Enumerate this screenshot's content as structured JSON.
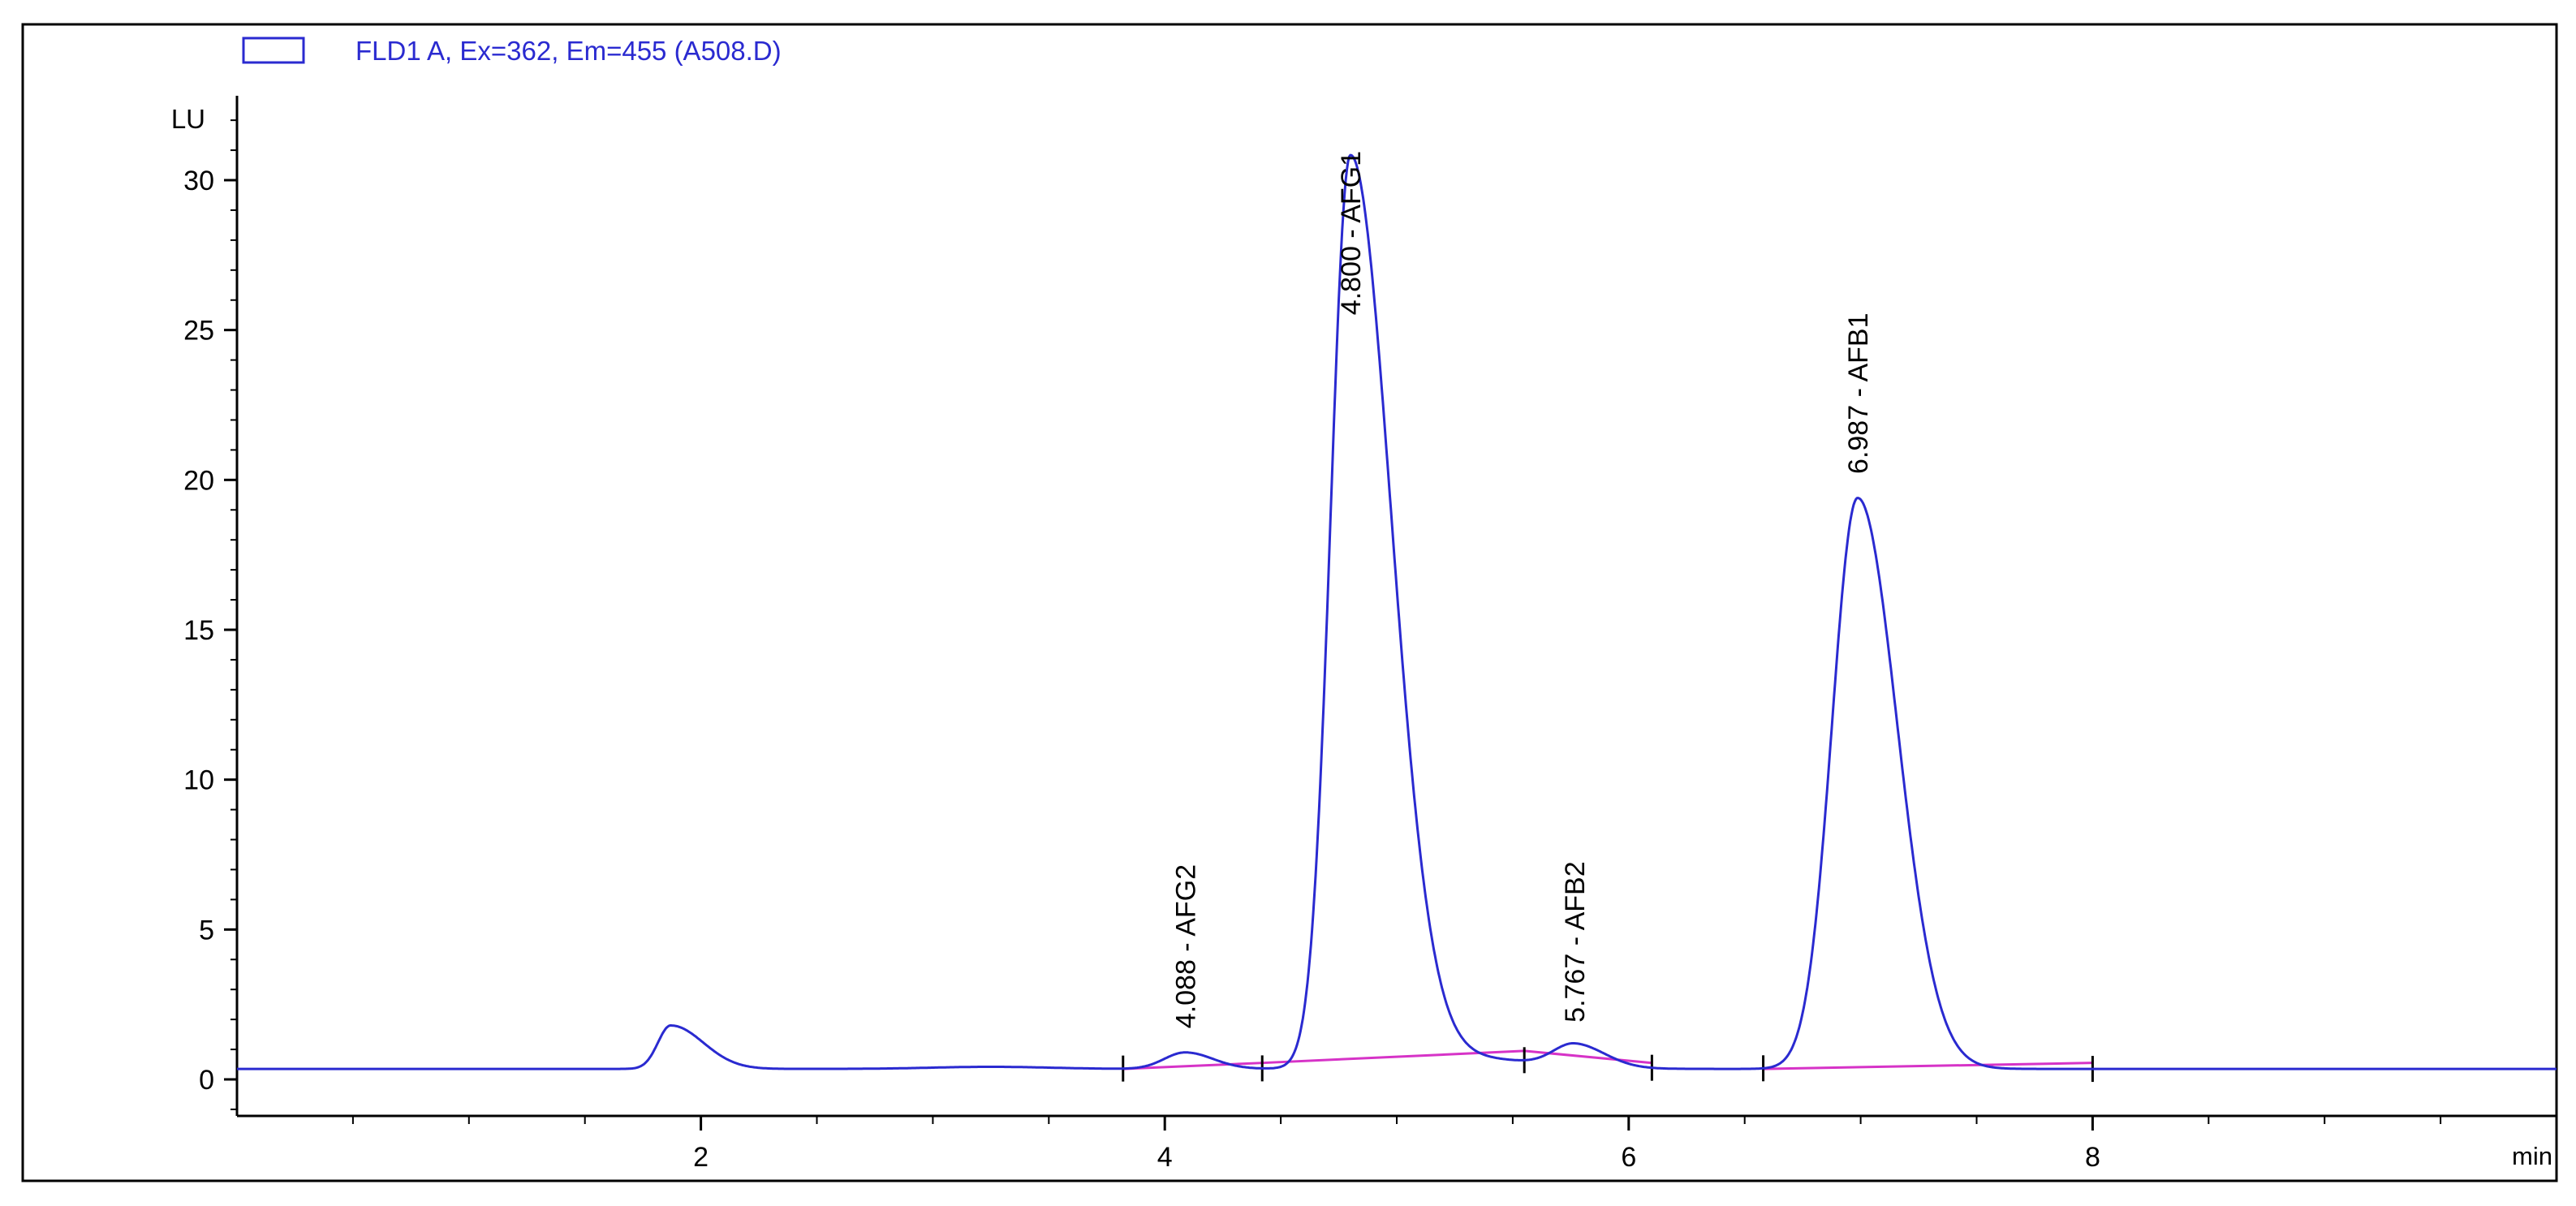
{
  "chart_data": {
    "type": "line",
    "legend": {
      "label": "FLD1 A, Ex=362, Em=455 (A508.D)",
      "placement": "top-left"
    },
    "ylabel": "LU",
    "xlabel": "min",
    "xlim": [
      0,
      10
    ],
    "ylim": [
      -1.2,
      33
    ],
    "x_ticks": [
      2,
      4,
      6,
      8
    ],
    "y_ticks": [
      0,
      5,
      10,
      15,
      20,
      25,
      30
    ],
    "grid": false,
    "colors": {
      "signal": "#2a2ad0",
      "baseline": "#d633c7",
      "axis": "#000000",
      "frame": "#000000",
      "legend_box": "#2a2ad0",
      "legend_text": "#2a2ad0"
    },
    "series": [
      {
        "name": "FLD1 A, Ex=362, Em=455 (A508.D)",
        "model": "sum_of_peaks",
        "base_level": 0.35,
        "peaks": [
          {
            "rt": 1.87,
            "height": 1.45,
            "sigma_left": 0.055,
            "sigma_right": 0.14
          },
          {
            "rt": 3.25,
            "height": 0.07,
            "sigma_left": 0.25,
            "sigma_right": 0.25
          },
          {
            "rt": 4.088,
            "height": 0.55,
            "sigma_left": 0.09,
            "sigma_right": 0.12
          },
          {
            "rt": 4.8,
            "height": 30.4,
            "sigma_left": 0.085,
            "sigma_right": 0.175
          },
          {
            "rt": 5.3,
            "height": 0.35,
            "sigma_left": 0.3,
            "sigma_right": 0.3
          },
          {
            "rt": 5.767,
            "height": 0.75,
            "sigma_left": 0.09,
            "sigma_right": 0.13
          },
          {
            "rt": 6.987,
            "height": 19.05,
            "sigma_left": 0.11,
            "sigma_right": 0.17
          }
        ]
      }
    ],
    "baseline_segments": [
      {
        "x": [
          3.82,
          4.42
        ],
        "y": [
          0.35,
          0.55
        ]
      },
      {
        "x": [
          4.42,
          5.55
        ],
        "y": [
          0.55,
          0.95
        ]
      },
      {
        "x": [
          5.55,
          6.1
        ],
        "y": [
          0.95,
          0.55
        ]
      },
      {
        "x": [
          6.58,
          8.0
        ],
        "y": [
          0.35,
          0.55
        ]
      }
    ],
    "integration_markers": [
      3.82,
      4.42,
      5.55,
      6.1,
      6.58,
      8.0
    ],
    "annotations": [
      {
        "x": 4.088,
        "y": 1.7,
        "text": "4.088 - AFG2"
      },
      {
        "x": 4.8,
        "y": 25.5,
        "text": "4.800 - AFG1"
      },
      {
        "x": 5.767,
        "y": 1.9,
        "text": "5.767 - AFB2"
      },
      {
        "x": 6.987,
        "y": 20.2,
        "text": "6.987 - AFB1"
      }
    ]
  }
}
